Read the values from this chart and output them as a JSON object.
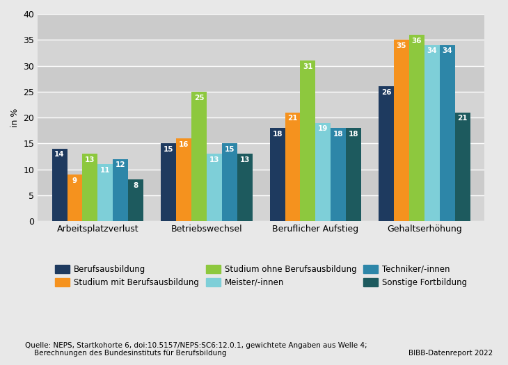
{
  "categories": [
    "Arbeitsplatzverlust",
    "Betriebswechsel",
    "Beruflicher Aufstieg",
    "Gehaltserhöhung"
  ],
  "series": [
    {
      "label": "Berufsausbildung",
      "color": "#1e3a5f",
      "values": [
        14,
        15,
        18,
        26
      ]
    },
    {
      "label": "Studium mit Berufsausbildung",
      "color": "#f5921e",
      "values": [
        9,
        16,
        21,
        35
      ]
    },
    {
      "label": "Studium ohne Berufsausbildung",
      "color": "#8dc83e",
      "values": [
        13,
        25,
        31,
        36
      ]
    },
    {
      "label": "Meister/-innen",
      "color": "#7ecfd8",
      "values": [
        11,
        13,
        19,
        34
      ]
    },
    {
      "label": "Techniker/-innen",
      "color": "#2d86a8",
      "values": [
        12,
        15,
        18,
        34
      ]
    },
    {
      "label": "Sonstige Fortbildung",
      "color": "#1d5a5e",
      "values": [
        8,
        13,
        18,
        21
      ]
    }
  ],
  "ylabel": "in %",
  "ylim": [
    0,
    40
  ],
  "yticks": [
    0,
    5,
    10,
    15,
    20,
    25,
    30,
    35,
    40
  ],
  "background_color": "#e8e8e8",
  "plot_bg_color": "#d8d8d8",
  "band_colors": [
    "#d4d4d4",
    "#cbcbcb"
  ],
  "bar_width": 0.14,
  "footnote": "Quelle: NEPS, Startkohorte 6, doi:10.5157/NEPS:SC6:12.0.1, gewichtete Angaben aus Welle 4;\n    Berechnungen des Bundesinstituts für Berufsbildung",
  "source_right": "BIBB-Datenreport 2022",
  "label_fontsize": 7.5,
  "axis_fontsize": 9,
  "legend_fontsize": 8.5
}
